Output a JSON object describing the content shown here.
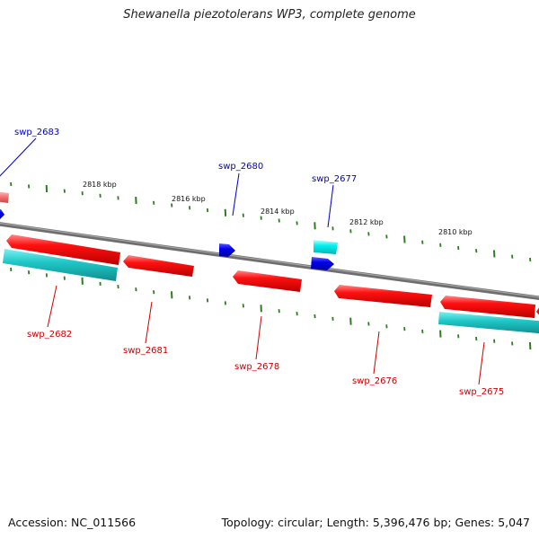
{
  "title": "Shewanella piezotolerans WP3, complete genome",
  "footer": {
    "accession": "Accession: NC_011566",
    "summary": "Topology: circular; Length: 5,396,476 bp; Genes: 5,047"
  },
  "colors": {
    "backbone": "#808080",
    "tick": "#2e7d1e",
    "forward_cds": "#0000ff",
    "forward_rna": "#00e5ee",
    "reverse_cds": "#ff0000",
    "reverse_rna": "#20c0c0",
    "forward_label": "#0000cc",
    "reverse_label": "#cc0000"
  },
  "ruler": {
    "unit": "kbp",
    "labels": [
      "2818 kbp",
      "2816 kbp",
      "2814 kbp",
      "2812 kbp",
      "2810 kbp"
    ]
  },
  "genes": {
    "forward": [
      "swp_2683",
      "swp_2680",
      "swp_2677"
    ],
    "reverse": [
      "swp_2682",
      "swp_2681",
      "swp_2678",
      "swp_2676",
      "swp_2675"
    ]
  }
}
